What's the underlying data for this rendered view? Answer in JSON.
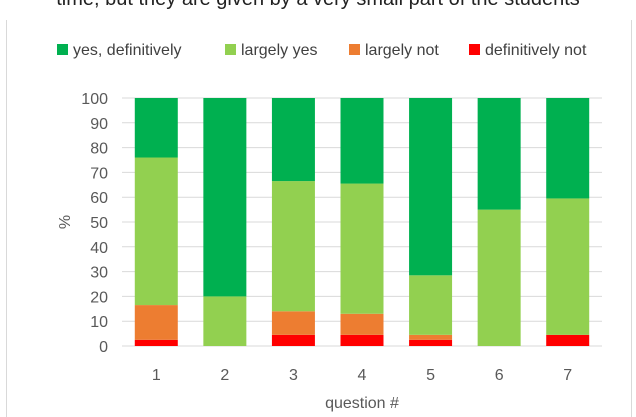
{
  "header_text": "time, but they are given by a very small part of the students",
  "chart_data": {
    "type": "bar",
    "stacked": true,
    "categories": [
      "1",
      "2",
      "3",
      "4",
      "5",
      "6",
      "7"
    ],
    "series": [
      {
        "name": "definitively not",
        "color": "#ff0000",
        "values": [
          2.5,
          0,
          4.5,
          4.5,
          2.5,
          0,
          4.5
        ]
      },
      {
        "name": "largely not",
        "color": "#ed7d31",
        "values": [
          14,
          0,
          9.5,
          8.5,
          2,
          0,
          0
        ]
      },
      {
        "name": "largely yes",
        "color": "#92d050",
        "values": [
          59.5,
          20,
          52.5,
          52.5,
          24,
          55,
          55
        ]
      },
      {
        "name": "yes, definitively",
        "color": "#00b050",
        "values": [
          24,
          80,
          33.5,
          34.5,
          71.5,
          45,
          40.5
        ]
      }
    ],
    "legend_order": [
      "yes, definitively",
      "largely yes",
      "largely not",
      "definitively not"
    ],
    "legend_position": "top",
    "ylim": [
      0,
      100
    ],
    "yticks": [
      0,
      10,
      20,
      30,
      40,
      50,
      60,
      70,
      80,
      90,
      100
    ],
    "ylabel": "%",
    "xlabel": "question #",
    "grid": true,
    "grid_color": "#d9d9d9"
  }
}
